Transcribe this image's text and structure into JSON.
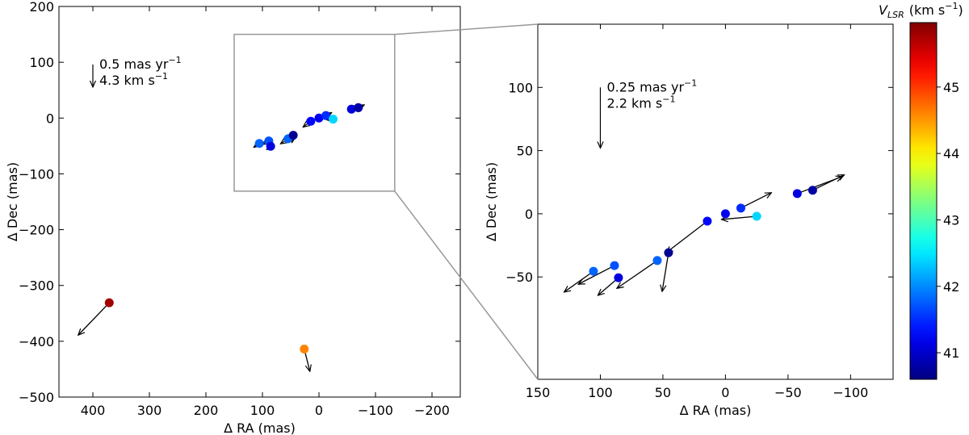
{
  "chart_data": [
    {
      "type": "scatter",
      "xlabel": "Δ RA (mas)",
      "ylabel": "Δ Dec (mas)",
      "xlim": [
        460,
        -250
      ],
      "ylim": [
        -500,
        200
      ],
      "xticks": [
        400,
        300,
        200,
        100,
        0,
        {
          "value": -100,
          "label": "−100"
        },
        {
          "value": -200,
          "label": "−200"
        }
      ],
      "yticks": [
        200,
        100,
        0,
        {
          "value": -100,
          "label": "−100"
        },
        {
          "value": -200,
          "label": "−200"
        },
        {
          "value": -300,
          "label": "−300"
        },
        {
          "value": -400,
          "label": "−400"
        },
        {
          "value": -500,
          "label": "−500"
        }
      ],
      "x": [
        371,
        26,
        105.5,
        88.7,
        85.5,
        54.5,
        45.5,
        14.5,
        0,
        -12.3,
        -25,
        -57.4,
        -69.7
      ],
      "y": [
        -331,
        -414,
        -45.5,
        -41,
        -50.6,
        -37,
        -30.8,
        -5.8,
        0,
        4.5,
        -2,
        16,
        18.6
      ],
      "vlsr": [
        45.8,
        44.6,
        41.8,
        41.7,
        41.1,
        41.8,
        40.7,
        41.3,
        41.2,
        41.5,
        42.4,
        41.1,
        40.8
      ],
      "u": [
        55,
        -10,
        9.8,
        12.1,
        6.9,
        13.5,
        2.1,
        13.7,
        null,
        -10.2,
        11.8,
        -15,
        -10.5
      ],
      "v": [
        -58,
        -40,
        -6.9,
        -6.2,
        -5.8,
        -9.2,
        -12.8,
        -10.4,
        null,
        5.1,
        -1,
        5.6,
        5.1
      ],
      "ref_arrow": {
        "x": 400,
        "y": 96,
        "u": 0,
        "v": -40.5
      },
      "ref_labels": [
        {
          "text": "0.5 mas yr",
          "sup": "−1"
        },
        {
          "text": "4.3 km s",
          "sup": "−1"
        }
      ]
    },
    {
      "type": "scatter",
      "xlabel": "Δ RA (mas)",
      "ylabel": "Δ Dec (mas)",
      "xlim": [
        150,
        -134
      ],
      "ylim": [
        -131,
        150
      ],
      "xticks": [
        150,
        100,
        50,
        0,
        {
          "value": -50,
          "label": "−50"
        },
        {
          "value": -100,
          "label": "−100"
        }
      ],
      "yticks": [
        100,
        50,
        0,
        {
          "value": -50,
          "label": "−50"
        }
      ],
      "x": [
        105.5,
        88.7,
        85.5,
        54.5,
        45.5,
        14.5,
        0,
        -12.3,
        -25,
        -57.4,
        -69.7
      ],
      "y": [
        -45.5,
        -41,
        -50.6,
        -37,
        -30.8,
        -5.8,
        0,
        4.5,
        -2,
        16,
        18.6
      ],
      "vlsr": [
        41.8,
        41.7,
        41.1,
        41.8,
        40.7,
        41.3,
        41.2,
        41.5,
        42.4,
        41.1,
        40.8
      ],
      "u": [
        23.5,
        29,
        16.5,
        32.3,
        5.1,
        32.9,
        null,
        -24.5,
        28.2,
        -36.1,
        -25.3
      ],
      "v": [
        -16.5,
        -14.8,
        -14,
        -22,
        -30.7,
        -25,
        null,
        12.2,
        -2.5,
        13.5,
        12.2
      ],
      "ref_arrow": {
        "x": 100,
        "y": 100,
        "u": 0,
        "v": -48
      },
      "ref_labels": [
        {
          "text": "0.25 mas yr",
          "sup": "−1"
        },
        {
          "text": "2.2 km s",
          "sup": "−1"
        }
      ]
    }
  ],
  "colorbar": {
    "cmap": "jet",
    "lim": [
      40.6,
      45.97
    ],
    "ticks": [
      41,
      42,
      43,
      44,
      45
    ],
    "label": {
      "symbol": "V",
      "sub": "LSR",
      "unit": "(km s",
      "sup": "−1",
      "close": ")"
    }
  }
}
